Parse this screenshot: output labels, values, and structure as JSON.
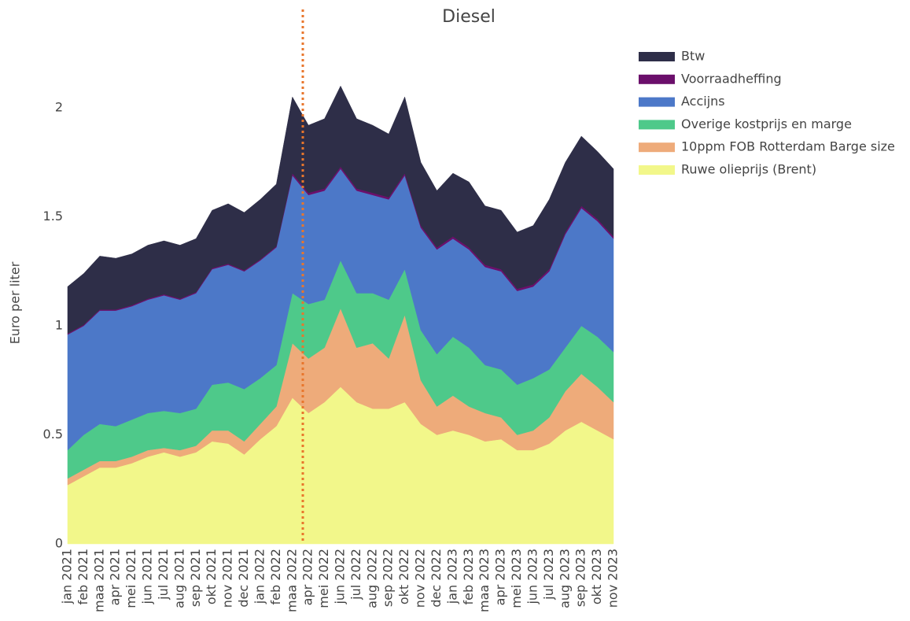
{
  "chart_data": {
    "type": "stacked_area",
    "title": "Diesel",
    "y_label": "Euro per liter",
    "x": [
      "jan 2021",
      "feb 2021",
      "maa 2021",
      "apr 2021",
      "mei 2021",
      "jun 2021",
      "jul 2021",
      "aug 2021",
      "sep 2021",
      "okt 2021",
      "nov 2021",
      "dec 2021",
      "jan 2022",
      "feb 2022",
      "maa 2022",
      "apr 2022",
      "mei 2022",
      "jun 2022",
      "jul 2022",
      "aug 2022",
      "sep 2022",
      "okt 2022",
      "nov 2022",
      "dec 2022",
      "jan 2023",
      "feb 2023",
      "maa 2023",
      "apr 2023",
      "mei 2023",
      "jun 2023",
      "jul 2023",
      "aug 2023",
      "sep 2023",
      "okt 2023",
      "nov 2023"
    ],
    "ylim": [
      0,
      2.2
    ],
    "yticks": [
      0,
      0.5,
      1,
      1.5,
      2
    ],
    "grid": false,
    "series": [
      {
        "name": "Ruwe olieprijs (Brent)",
        "color": "#f2f78a",
        "values": [
          0.27,
          0.31,
          0.35,
          0.35,
          0.37,
          0.4,
          0.42,
          0.4,
          0.42,
          0.47,
          0.46,
          0.41,
          0.48,
          0.54,
          0.67,
          0.6,
          0.65,
          0.72,
          0.65,
          0.62,
          0.62,
          0.65,
          0.55,
          0.5,
          0.52,
          0.5,
          0.47,
          0.48,
          0.43,
          0.43,
          0.46,
          0.52,
          0.56,
          0.52,
          0.48
        ]
      },
      {
        "name": "10ppm FOB Rotterdam Barge size",
        "color": "#eeab7a",
        "values": [
          0.03,
          0.03,
          0.03,
          0.03,
          0.03,
          0.03,
          0.02,
          0.03,
          0.03,
          0.05,
          0.06,
          0.06,
          0.07,
          0.09,
          0.25,
          0.25,
          0.25,
          0.36,
          0.25,
          0.3,
          0.23,
          0.4,
          0.2,
          0.13,
          0.16,
          0.13,
          0.13,
          0.1,
          0.07,
          0.09,
          0.12,
          0.18,
          0.22,
          0.2,
          0.17
        ]
      },
      {
        "name": "Overige kostprijs en marge",
        "color": "#4ec98a",
        "values": [
          0.13,
          0.16,
          0.17,
          0.16,
          0.17,
          0.17,
          0.17,
          0.17,
          0.17,
          0.21,
          0.22,
          0.24,
          0.21,
          0.19,
          0.23,
          0.25,
          0.22,
          0.22,
          0.25,
          0.23,
          0.27,
          0.21,
          0.23,
          0.24,
          0.27,
          0.27,
          0.22,
          0.22,
          0.23,
          0.24,
          0.22,
          0.2,
          0.22,
          0.23,
          0.23
        ]
      },
      {
        "name": "Accijns",
        "color": "#4c78c8",
        "values": [
          0.53,
          0.5,
          0.52,
          0.53,
          0.52,
          0.52,
          0.53,
          0.52,
          0.53,
          0.53,
          0.54,
          0.54,
          0.54,
          0.54,
          0.54,
          0.5,
          0.5,
          0.42,
          0.47,
          0.45,
          0.46,
          0.43,
          0.47,
          0.48,
          0.45,
          0.45,
          0.45,
          0.45,
          0.43,
          0.42,
          0.45,
          0.52,
          0.54,
          0.53,
          0.52
        ]
      },
      {
        "name": "Voorraadheffing",
        "color": "#6b0f6b",
        "values": [
          0.005,
          0.005,
          0.005,
          0.005,
          0.005,
          0.005,
          0.005,
          0.005,
          0.005,
          0.005,
          0.005,
          0.005,
          0.005,
          0.005,
          0.01,
          0.01,
          0.01,
          0.01,
          0.01,
          0.01,
          0.01,
          0.01,
          0.01,
          0.01,
          0.01,
          0.01,
          0.01,
          0.01,
          0.01,
          0.01,
          0.01,
          0.01,
          0.01,
          0.01,
          0.01
        ]
      },
      {
        "name": "Btw",
        "color": "#2e2e48",
        "values": [
          0.215,
          0.235,
          0.245,
          0.235,
          0.235,
          0.245,
          0.245,
          0.245,
          0.245,
          0.265,
          0.275,
          0.265,
          0.275,
          0.285,
          0.35,
          0.31,
          0.32,
          0.37,
          0.32,
          0.31,
          0.29,
          0.35,
          0.29,
          0.26,
          0.29,
          0.3,
          0.27,
          0.27,
          0.26,
          0.27,
          0.32,
          0.32,
          0.32,
          0.31,
          0.31
        ]
      }
    ]
  }
}
